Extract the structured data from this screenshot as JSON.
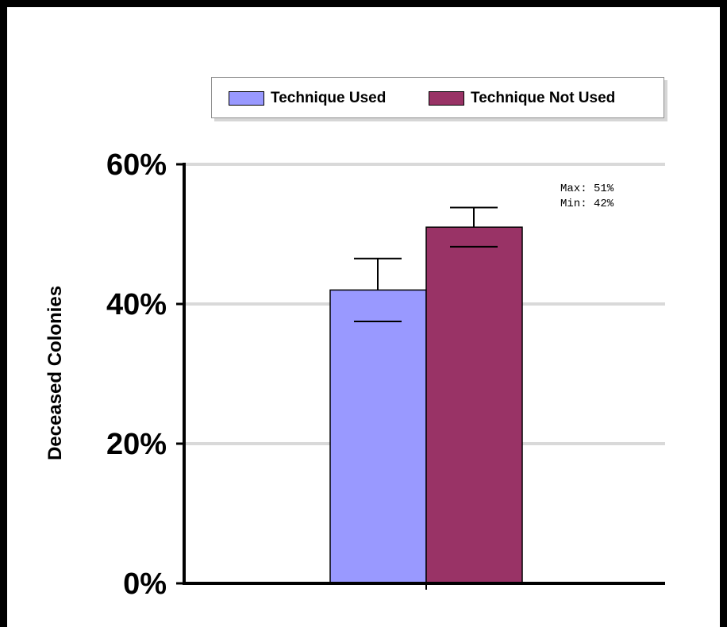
{
  "chart_data": {
    "type": "bar",
    "categories": [
      ""
    ],
    "series": [
      {
        "name": "Technique Used",
        "values": [
          42
        ],
        "error_plus": [
          4.5
        ],
        "error_minus": [
          4.5
        ],
        "color": "#9999ff"
      },
      {
        "name": "Technique Not Used",
        "values": [
          51
        ],
        "error_plus": [
          2.8
        ],
        "error_minus": [
          2.8
        ],
        "color": "#993366"
      }
    ],
    "ylabel": "Deceased Colonies",
    "ylim": [
      0,
      60
    ],
    "yticks": [
      0,
      20,
      40,
      60
    ],
    "ytick_labels": [
      "0%",
      "20%",
      "40%",
      "60%"
    ],
    "grid": true,
    "legend_position": "top",
    "annotations": [
      "Max: 51%",
      "Min: 42%"
    ]
  }
}
